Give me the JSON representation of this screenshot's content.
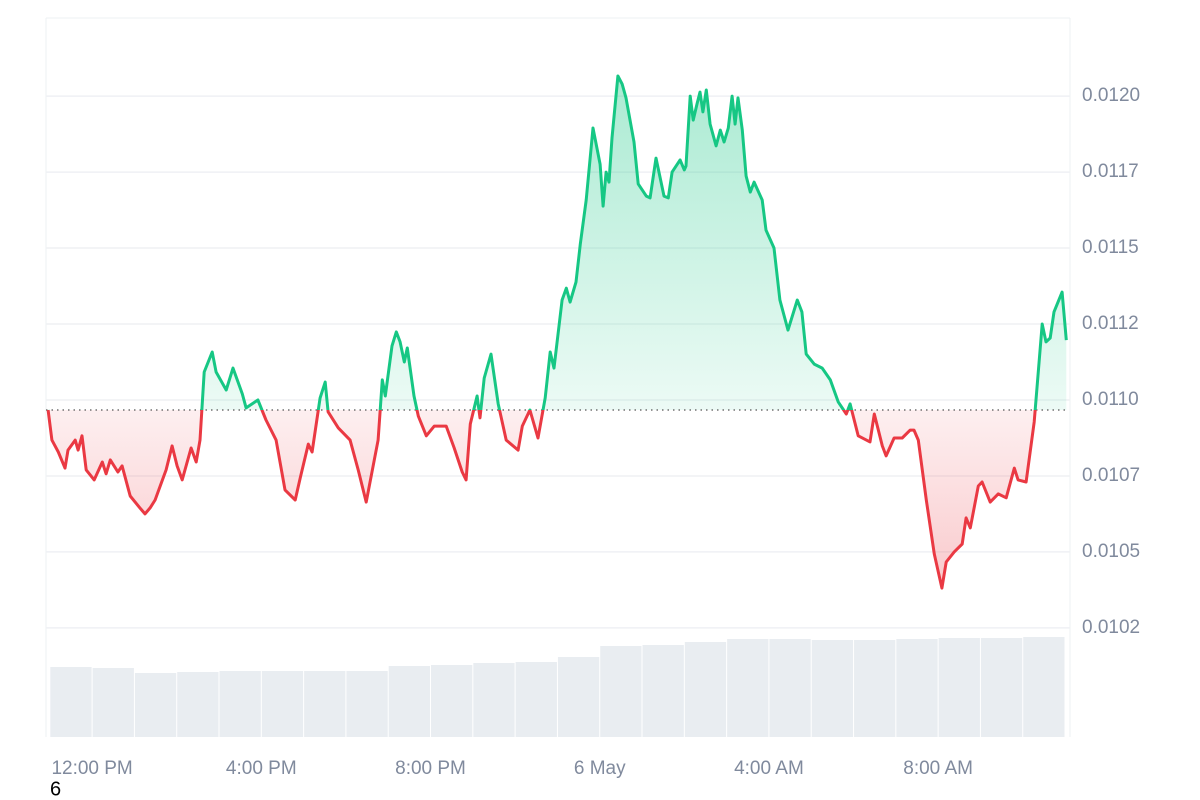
{
  "chart_data": {
    "type": "line",
    "annotations": [
      "6"
    ],
    "x": [
      -1.04,
      -0.95,
      -0.8,
      -0.64,
      -0.57,
      -0.4,
      -0.33,
      -0.24,
      -0.14,
      0.05,
      0.24,
      0.33,
      0.43,
      0.61,
      0.71,
      0.9,
      1.13,
      1.25,
      1.37,
      1.49,
      1.61,
      1.75,
      1.89,
      2.01,
      2.13,
      2.34,
      2.46,
      2.55,
      2.65,
      2.84,
      2.93,
      3.17,
      3.33,
      3.55,
      3.64,
      3.92,
      4.11,
      4.35,
      4.56,
      4.8,
      4.92,
      5.11,
      5.2,
      5.39,
      5.51,
      5.58,
      5.82,
      6.1,
      6.29,
      6.48,
      6.67,
      6.76,
      6.86,
      6.93,
      7.09,
      7.19,
      7.28,
      7.38,
      7.45,
      7.61,
      7.71,
      7.9,
      8.09,
      8.37,
      8.56,
      8.75,
      8.84,
      8.94,
      9.1,
      9.17,
      9.27,
      9.43,
      9.6,
      9.79,
      10.07,
      10.17,
      10.35,
      10.54,
      10.71,
      10.83,
      10.92,
      11.11,
      11.21,
      11.3,
      11.44,
      11.54,
      11.68,
      11.84,
      12.01,
      12.08,
      12.15,
      12.22,
      12.29,
      12.43,
      12.53,
      12.62,
      12.81,
      12.91,
      13.1,
      13.19,
      13.33,
      13.52,
      13.62,
      13.71,
      13.9,
      14.0,
      14.04,
      14.14,
      14.21,
      14.3,
      14.37,
      14.44,
      14.52,
      14.61,
      14.75,
      14.85,
      14.94,
      15.04,
      15.13,
      15.2,
      15.27,
      15.37,
      15.46,
      15.56,
      15.65,
      15.84,
      15.93,
      16.12,
      16.26,
      16.45,
      16.67,
      16.78,
      16.88,
      17.07,
      17.26,
      17.45,
      17.64,
      17.83,
      17.92,
      18.11,
      18.39,
      18.49,
      18.68,
      18.77,
      18.96,
      19.15,
      19.34,
      19.43,
      19.53,
      19.72,
      19.91,
      20.09,
      20.19,
      20.38,
      20.57,
      20.66,
      20.76,
      20.95,
      21.04,
      21.23,
      21.42,
      21.61,
      21.8,
      21.89,
      22.08,
      22.27,
      22.46,
      22.55,
      22.65,
      22.74,
      22.93,
      23.03
    ],
    "series": [
      {
        "color": "#16c784",
        "down_color": "#ea3943",
        "values": [
          0.010967,
          0.010868,
          0.010829,
          0.010776,
          0.010835,
          0.010868,
          0.010835,
          0.010882,
          0.01077,
          0.010737,
          0.010796,
          0.010757,
          0.010803,
          0.010763,
          0.010783,
          0.010684,
          0.010645,
          0.010625,
          0.010645,
          0.010671,
          0.010717,
          0.01077,
          0.010849,
          0.010783,
          0.010737,
          0.010842,
          0.010796,
          0.010868,
          0.011092,
          0.011158,
          0.011092,
          0.011033,
          0.011105,
          0.01102,
          0.010974,
          0.011,
          0.010934,
          0.010868,
          0.010704,
          0.010671,
          0.010743,
          0.010855,
          0.010829,
          0.011007,
          0.011059,
          0.010961,
          0.010908,
          0.010868,
          0.01077,
          0.010664,
          0.010803,
          0.010868,
          0.011066,
          0.011013,
          0.011178,
          0.011224,
          0.011191,
          0.011125,
          0.011171,
          0.011013,
          0.010947,
          0.010882,
          0.010914,
          0.010914,
          0.010842,
          0.010763,
          0.010737,
          0.010921,
          0.011013,
          0.010941,
          0.011072,
          0.011151,
          0.010987,
          0.010868,
          0.010835,
          0.010914,
          0.010967,
          0.010875,
          0.011007,
          0.011158,
          0.011105,
          0.011329,
          0.011368,
          0.011322,
          0.011388,
          0.011513,
          0.011658,
          0.011895,
          0.011776,
          0.011638,
          0.01175,
          0.011717,
          0.011862,
          0.012066,
          0.01204,
          0.011994,
          0.011849,
          0.011711,
          0.011671,
          0.011665,
          0.011796,
          0.011671,
          0.011665,
          0.01175,
          0.01179,
          0.011757,
          0.01177,
          0.012,
          0.011921,
          0.011974,
          0.012013,
          0.011948,
          0.01202,
          0.011908,
          0.011836,
          0.011888,
          0.011849,
          0.011895,
          0.012,
          0.011908,
          0.011994,
          0.011888,
          0.011737,
          0.011684,
          0.011717,
          0.011658,
          0.011559,
          0.0115,
          0.011329,
          0.01123,
          0.011329,
          0.01129,
          0.011151,
          0.011118,
          0.011105,
          0.011066,
          0.010993,
          0.010954,
          0.010987,
          0.010882,
          0.010862,
          0.010954,
          0.010849,
          0.010816,
          0.010875,
          0.010875,
          0.010901,
          0.010901,
          0.010868,
          0.010671,
          0.010493,
          0.010381,
          0.010467,
          0.0105,
          0.010526,
          0.010612,
          0.010579,
          0.010717,
          0.01073,
          0.010664,
          0.010691,
          0.010678,
          0.010776,
          0.010737,
          0.01073,
          0.010928,
          0.01125,
          0.011191,
          0.011204,
          0.01129,
          0.011355,
          0.011197
        ]
      },
      {
        "type": "bar",
        "axis": "y2",
        "color": "#e9edf1",
        "x": [
          -0.5,
          0.5,
          1.5,
          2.5,
          3.5,
          4.5,
          5.5,
          6.5,
          7.5,
          8.5,
          9.5,
          10.5,
          11.5,
          12.5,
          13.5,
          14.5,
          15.5,
          16.5,
          17.5,
          18.5,
          19.5,
          20.5,
          21.5,
          22.5
        ],
        "values": [
          70,
          69,
          64,
          65,
          66,
          66,
          66,
          66,
          71,
          72,
          74,
          75,
          80,
          91,
          92,
          95,
          98,
          98,
          97,
          97,
          98,
          99,
          99,
          100
        ]
      }
    ],
    "baseline": 0.010967,
    "xlim": [
      -1.09,
      23.07
    ],
    "xticks": [
      {
        "value": 0,
        "label": "12:00 PM"
      },
      {
        "value": 4,
        "label": "4:00 PM"
      },
      {
        "value": 8,
        "label": "8:00 PM"
      },
      {
        "value": 12,
        "label": "6 May"
      },
      {
        "value": 16,
        "label": "4:00 AM"
      },
      {
        "value": 20,
        "label": "8:00 AM"
      }
    ],
    "ylim": [
      0.009891,
      0.012257
    ],
    "yticks": [
      {
        "value": 0.01025,
        "label": "0.0102"
      },
      {
        "value": 0.0105,
        "label": "0.0105"
      },
      {
        "value": 0.01075,
        "label": "0.0107"
      },
      {
        "value": 0.011,
        "label": "0.0110"
      },
      {
        "value": 0.01125,
        "label": "0.0112"
      },
      {
        "value": 0.0115,
        "label": "0.0115"
      },
      {
        "value": 0.01175,
        "label": "0.0117"
      },
      {
        "value": 0.012,
        "label": "0.0120"
      }
    ],
    "y2lim": [
      0,
      100
    ],
    "grid": true
  }
}
